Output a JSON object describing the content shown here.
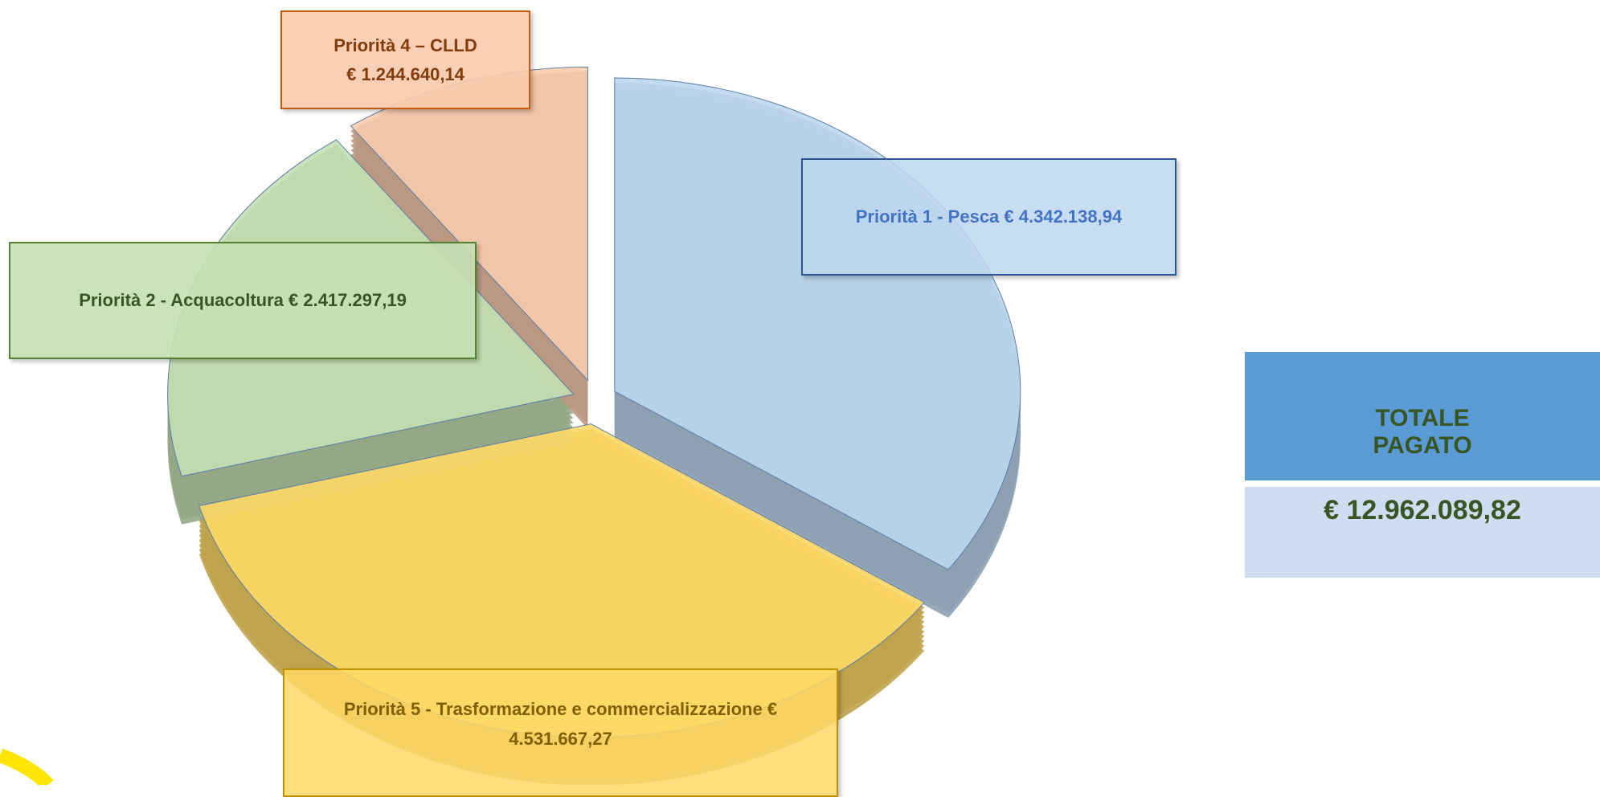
{
  "chart_data": {
    "type": "pie",
    "categories": [
      "Priorità 1 - Pesca",
      "Priorità 5 - Trasformazione e commercializzazione",
      "Priorità 2 - Acquacoltura",
      "Priorità 4 – CLLD"
    ],
    "values": [
      4342138.94,
      4531667.27,
      2417297.19,
      1244640.14
    ],
    "value_labels": [
      "€  4.342.138,94",
      "€ 4.531.667,27",
      "€  2.417.297,19",
      "€ 1.244.640,14"
    ],
    "colors": [
      "#bdd7ee",
      "#ffd966",
      "#c5e0b4",
      "#f8cbad"
    ]
  },
  "total": {
    "label": "TOTALE PAGATO",
    "value": "€ 12.962.089,82"
  }
}
